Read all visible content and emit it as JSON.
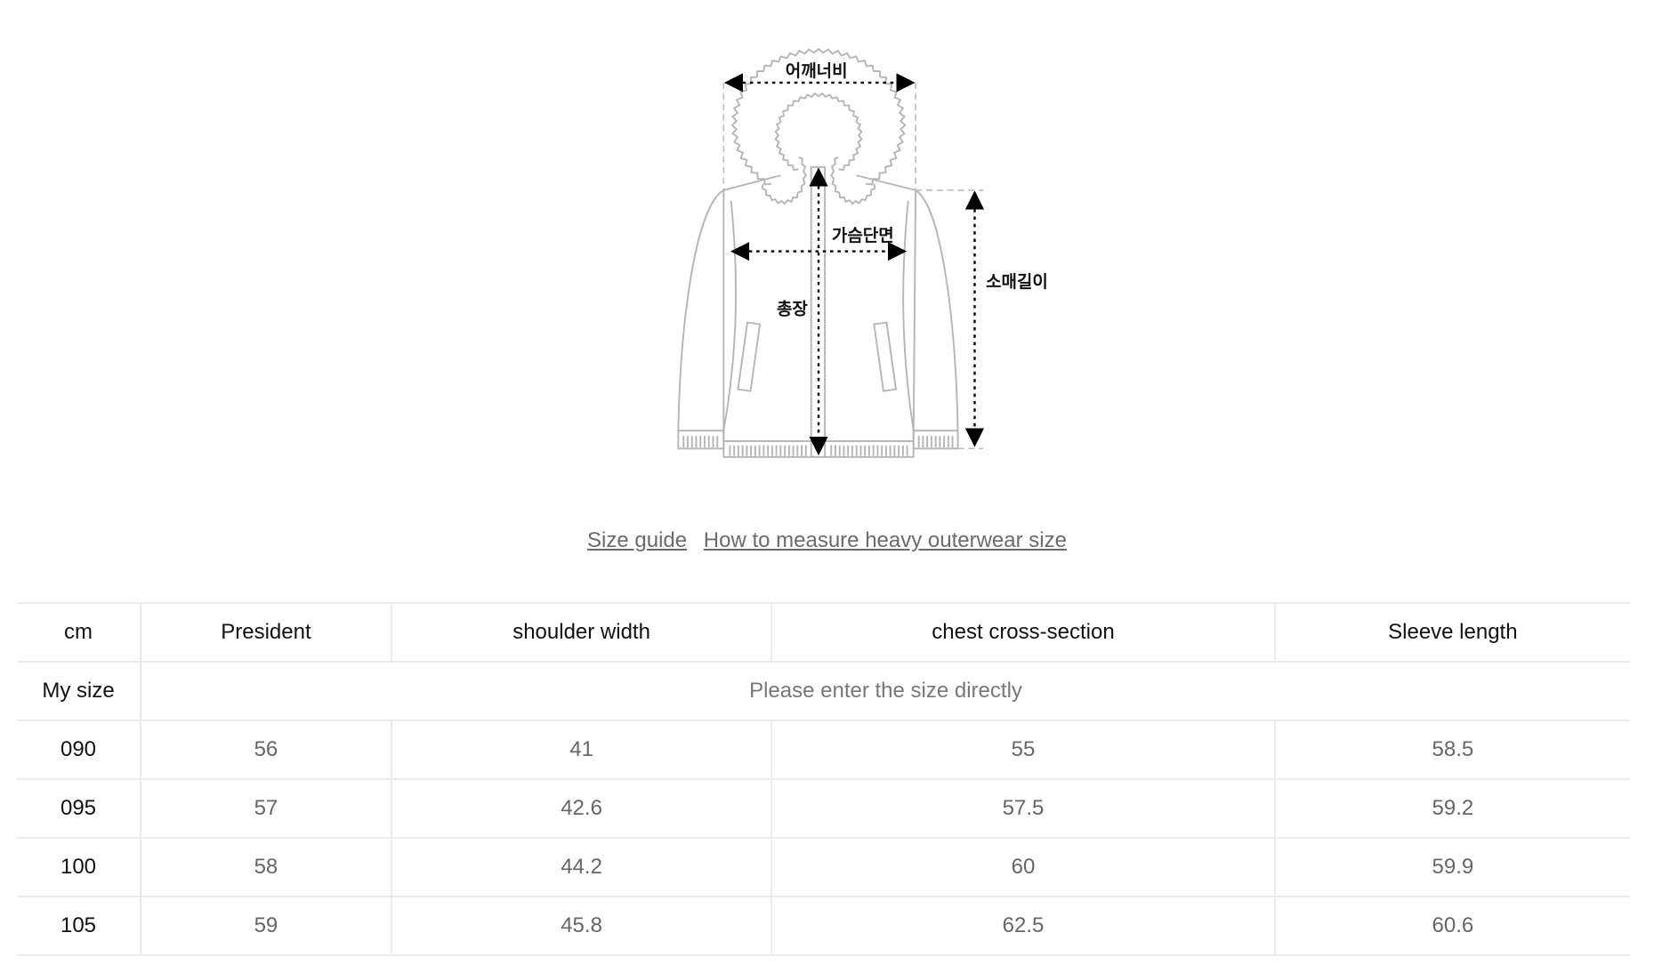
{
  "diagram": {
    "labels": {
      "shoulder": "어깨너비",
      "chest": "가슴단면",
      "length": "총장",
      "sleeve": "소매길이"
    }
  },
  "links": {
    "size_guide": "Size guide",
    "how_to_measure": "How to measure heavy outerwear size"
  },
  "table": {
    "unit": "cm",
    "columns": [
      "President",
      "shoulder width",
      "chest cross-section",
      "Sleeve length"
    ],
    "my_size": {
      "label": "My size",
      "placeholder": "Please enter the size directly"
    },
    "rows": [
      {
        "size": "090",
        "values": [
          "56",
          "41",
          "55",
          "58.5"
        ]
      },
      {
        "size": "095",
        "values": [
          "57",
          "42.6",
          "57.5",
          "59.2"
        ]
      },
      {
        "size": "100",
        "values": [
          "58",
          "44.2",
          "60",
          "59.9"
        ]
      },
      {
        "size": "105",
        "values": [
          "59",
          "45.8",
          "62.5",
          "60.6"
        ]
      }
    ]
  }
}
